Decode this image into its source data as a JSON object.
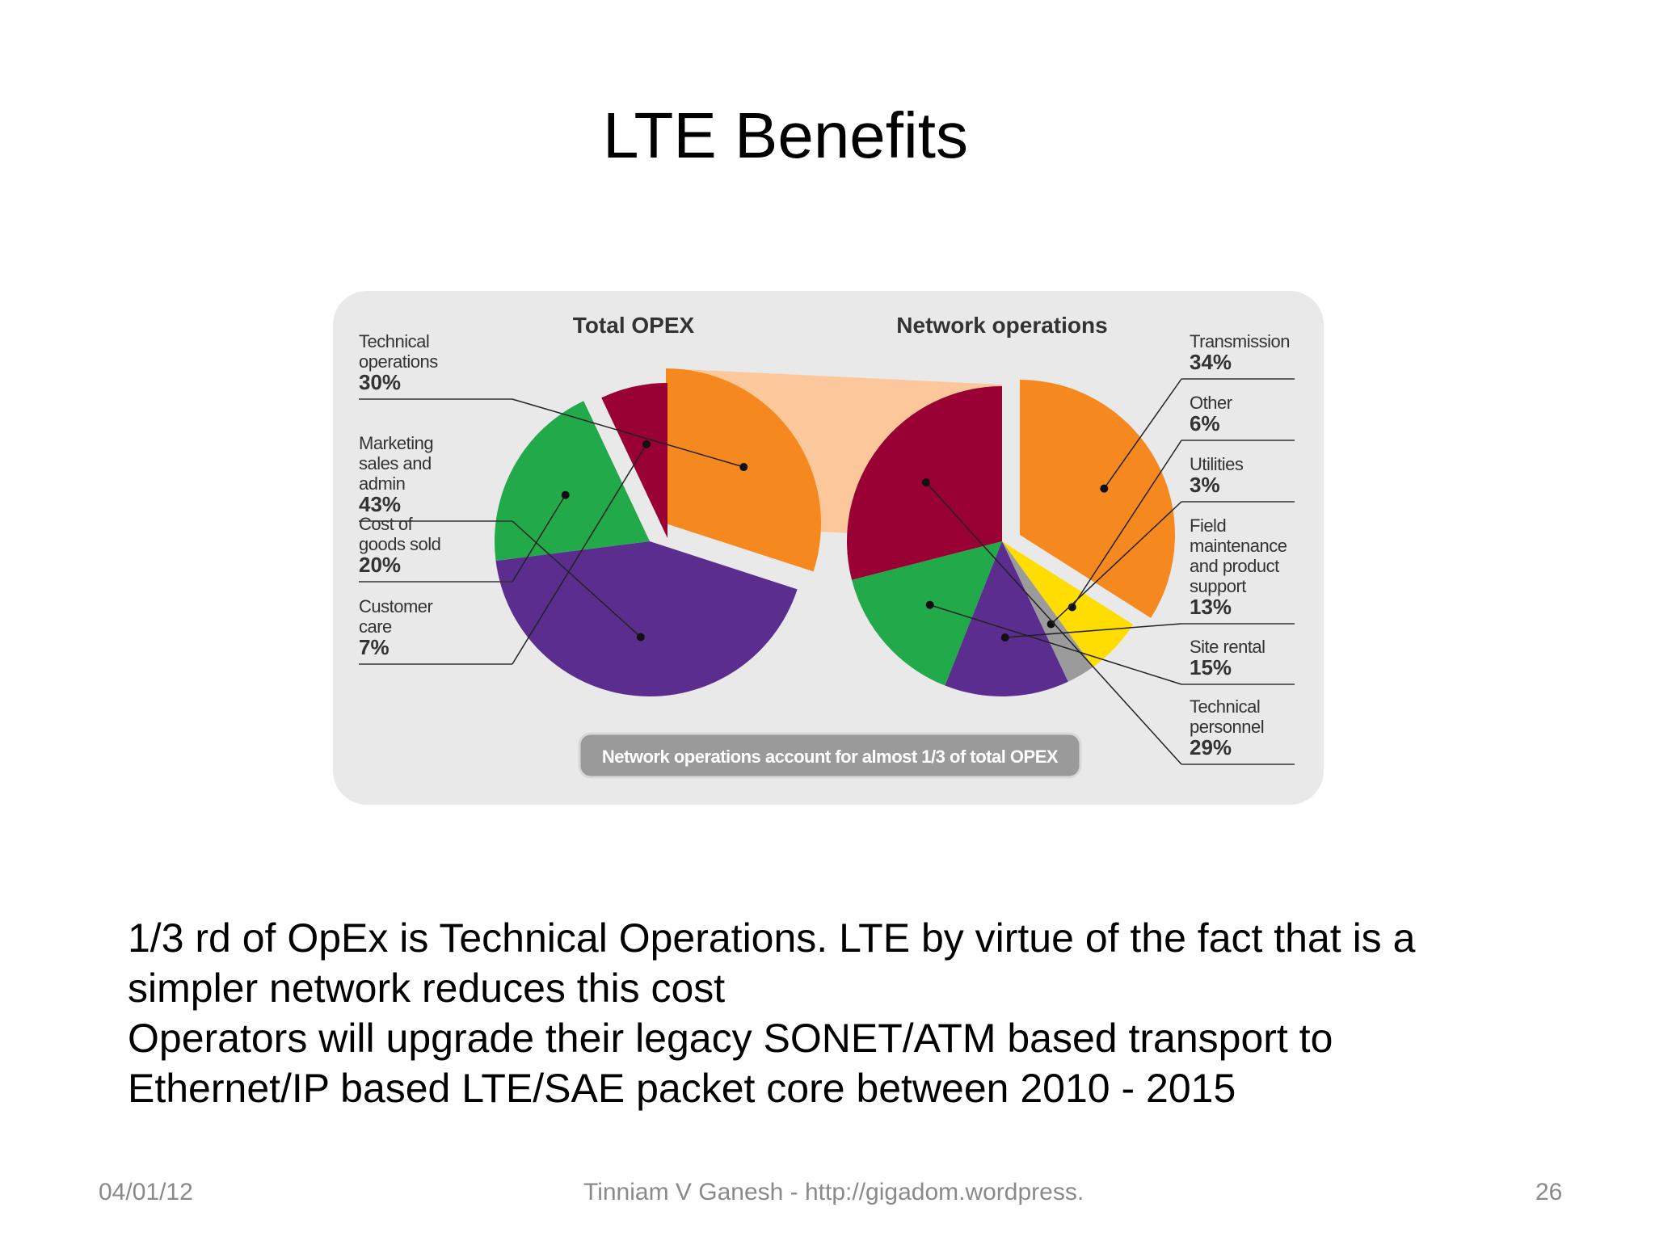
{
  "slide": {
    "title": "LTE Benefits",
    "body": [
      "1/3 rd of OpEx is Technical Operations. LTE by virtue of the fact that is a simpler network reduces this cost",
      "Operators will upgrade their legacy SONET/ATM based transport to Ethernet/IP based LTE/SAE packet core between 2010 - 2015"
    ],
    "footer": {
      "date": "04/01/12",
      "author": "Tinniam V Ganesh - http://gigadom.wordpress.com",
      "page": "26"
    }
  },
  "chart_data": [
    {
      "type": "pie",
      "title": "Total OPEX",
      "slices": [
        {
          "label": "Technical operations",
          "value": 30,
          "value_label": "30%",
          "color": "#f5891f",
          "exploded": true
        },
        {
          "label": "Marketing sales and admin",
          "value": 43,
          "value_label": "43%",
          "color": "#5b2d8f"
        },
        {
          "label": "Cost of goods sold",
          "value": 20,
          "value_label": "20%",
          "color": "#22a94a"
        },
        {
          "label": "Customer care",
          "value": 7,
          "value_label": "7%",
          "color": "#990033",
          "exploded": true
        }
      ]
    },
    {
      "type": "pie",
      "title": "Network operations",
      "slices": [
        {
          "label": "Transmission",
          "value": 34,
          "value_label": "34%",
          "color": "#f5891f",
          "exploded": true
        },
        {
          "label": "Other",
          "value": 6,
          "value_label": "6%",
          "color": "#ffdd00"
        },
        {
          "label": "Utilities",
          "value": 3,
          "value_label": "3%",
          "color": "#9b9b9b"
        },
        {
          "label": "Field maintenance and product support",
          "value": 13,
          "value_label": "13%",
          "color": "#5b2d8f"
        },
        {
          "label": "Site rental",
          "value": 15,
          "value_label": "15%",
          "color": "#22a94a"
        },
        {
          "label": "Technical personnel",
          "value": 29,
          "value_label": "29%",
          "color": "#990033"
        }
      ]
    }
  ],
  "annotation": "Network operations account for almost 1/3 of total OPEX"
}
